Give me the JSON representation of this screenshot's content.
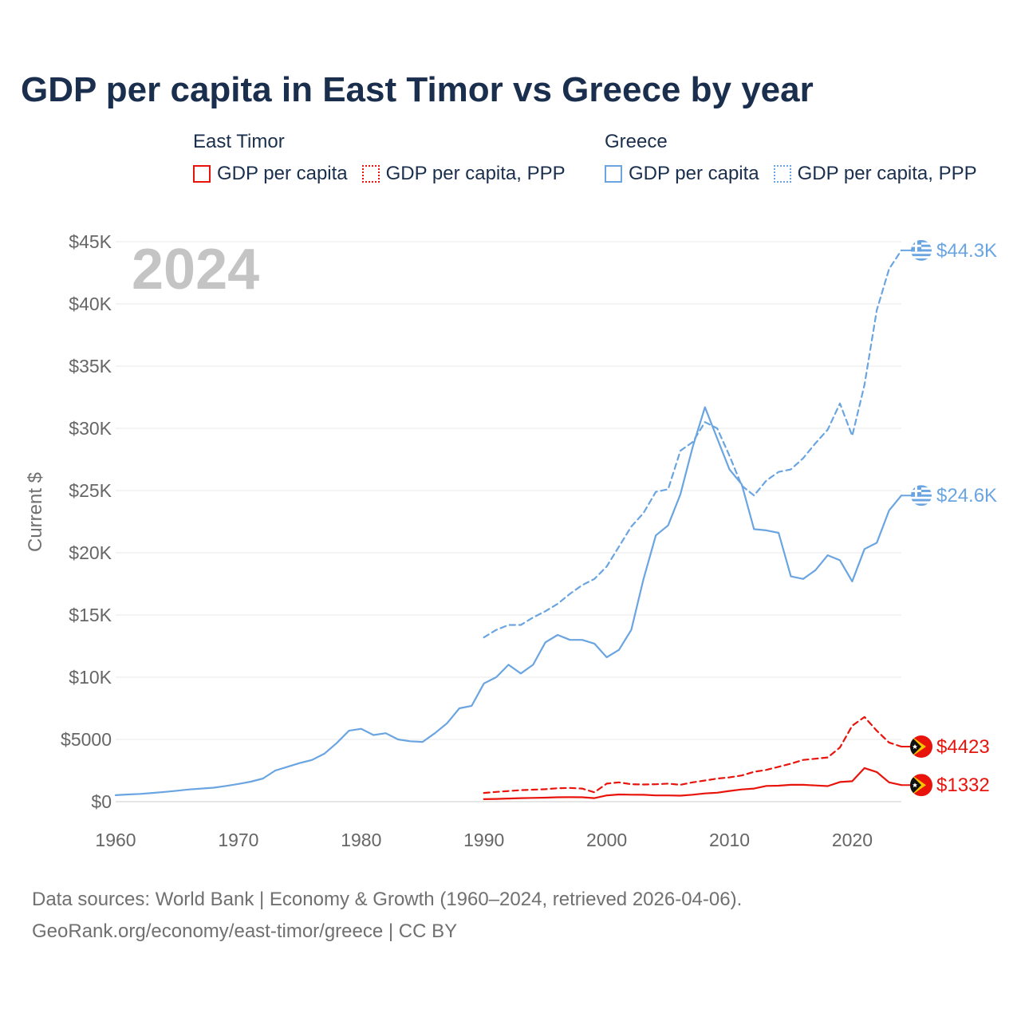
{
  "title": "GDP per capita in East Timor vs Greece by year",
  "legend": {
    "groups": [
      {
        "name": "East Timor",
        "items": [
          {
            "label": "GDP per capita",
            "color": "#e8140c",
            "style": "solid"
          },
          {
            "label": "GDP per capita, PPP",
            "color": "#e8140c",
            "style": "dotted"
          }
        ]
      },
      {
        "name": "Greece",
        "items": [
          {
            "label": "GDP per capita",
            "color": "#6aa5e1",
            "style": "solid"
          },
          {
            "label": "GDP per capita, PPP",
            "color": "#6aa5e1",
            "style": "dotted"
          }
        ]
      }
    ]
  },
  "year_watermark": "2024",
  "footer": {
    "line1": "Data sources: World Bank | Economy & Growth (1960–2024, retrieved 2026-04-06).",
    "line2": "GeoRank.org/economy/east-timor/greece | CC BY"
  },
  "chart_data": {
    "type": "line",
    "title": "GDP per capita in East Timor vs Greece by year",
    "xlabel": "",
    "ylabel": "Current $",
    "xlim": [
      1960,
      2024
    ],
    "ylim": [
      0,
      45000
    ],
    "x_ticks": [
      1960,
      1970,
      1980,
      1990,
      2000,
      2010,
      2020
    ],
    "x_tick_labels": [
      "1960",
      "1970",
      "1980",
      "1990",
      "2000",
      "2010",
      "2020"
    ],
    "y_ticks": [
      0,
      5000,
      10000,
      15000,
      20000,
      25000,
      30000,
      35000,
      40000,
      45000
    ],
    "y_tick_labels": [
      "$0",
      "$5000",
      "$10K",
      "$15K",
      "$20K",
      "$25K",
      "$30K",
      "$35K",
      "$40K",
      "$45K"
    ],
    "grid": true,
    "series": [
      {
        "name": "Greece GDP per capita",
        "color": "#6aa5e1",
        "dash": "solid",
        "flag": "greece-flag-icon",
        "end_label": "$24.6K",
        "x": [
          1960,
          1961,
          1962,
          1963,
          1964,
          1965,
          1966,
          1967,
          1968,
          1969,
          1970,
          1971,
          1972,
          1973,
          1974,
          1975,
          1976,
          1977,
          1978,
          1979,
          1980,
          1981,
          1982,
          1983,
          1984,
          1985,
          1986,
          1987,
          1988,
          1989,
          1990,
          1991,
          1992,
          1993,
          1994,
          1995,
          1996,
          1997,
          1998,
          1999,
          2000,
          2001,
          2002,
          2003,
          2004,
          2005,
          2006,
          2007,
          2008,
          2009,
          2010,
          2011,
          2012,
          2013,
          2014,
          2015,
          2016,
          2017,
          2018,
          2019,
          2020,
          2021,
          2022,
          2023,
          2024
        ],
        "values": [
          520,
          580,
          620,
          700,
          780,
          880,
          980,
          1050,
          1120,
          1260,
          1420,
          1600,
          1860,
          2500,
          2800,
          3100,
          3350,
          3850,
          4700,
          5700,
          5850,
          5350,
          5500,
          5000,
          4850,
          4800,
          5500,
          6300,
          7500,
          7700,
          9500,
          10000,
          11000,
          10300,
          11000,
          12800,
          13400,
          13000,
          13000,
          12700,
          11600,
          12200,
          13800,
          17900,
          21400,
          22200,
          24700,
          28500,
          31700,
          29200,
          26700,
          25500,
          21900,
          21800,
          21600,
          18100,
          17900,
          18600,
          19800,
          19400,
          17700,
          20300,
          20800,
          23400,
          24600
        ]
      },
      {
        "name": "Greece GDP per capita, PPP",
        "color": "#6aa5e1",
        "dash": "dashed",
        "flag": "greece-flag-icon",
        "end_label": "$44.3K",
        "x": [
          1990,
          1991,
          1992,
          1993,
          1994,
          1995,
          1996,
          1997,
          1998,
          1999,
          2000,
          2001,
          2002,
          2003,
          2004,
          2005,
          2006,
          2007,
          2008,
          2009,
          2010,
          2011,
          2012,
          2013,
          2014,
          2015,
          2016,
          2017,
          2018,
          2019,
          2020,
          2021,
          2022,
          2023,
          2024
        ],
        "values": [
          13200,
          13800,
          14200,
          14200,
          14800,
          15300,
          15900,
          16700,
          17400,
          17900,
          18900,
          20500,
          22100,
          23200,
          24900,
          25100,
          28200,
          28900,
          30500,
          30000,
          27800,
          25400,
          24600,
          25800,
          26500,
          26700,
          27600,
          28800,
          29900,
          32000,
          29400,
          33500,
          39500,
          42800,
          44300
        ]
      },
      {
        "name": "East Timor GDP per capita",
        "color": "#e8140c",
        "dash": "solid",
        "flag": "east-timor-flag-icon",
        "end_label": "$1332",
        "x": [
          1990,
          1991,
          1992,
          1993,
          1994,
          1995,
          1996,
          1997,
          1998,
          1999,
          2000,
          2001,
          2002,
          2003,
          2004,
          2005,
          2006,
          2007,
          2008,
          2009,
          2010,
          2011,
          2012,
          2013,
          2014,
          2015,
          2016,
          2017,
          2018,
          2019,
          2020,
          2021,
          2022,
          2023,
          2024
        ],
        "values": [
          200,
          220,
          250,
          280,
          300,
          320,
          350,
          360,
          350,
          280,
          500,
          580,
          560,
          550,
          500,
          500,
          480,
          560,
          660,
          720,
          860,
          980,
          1050,
          1260,
          1280,
          1350,
          1350,
          1300,
          1250,
          1580,
          1640,
          2700,
          2380,
          1550,
          1332
        ]
      },
      {
        "name": "East Timor GDP per capita, PPP",
        "color": "#e8140c",
        "dash": "dashed",
        "flag": "east-timor-flag-icon",
        "end_label": "$4423",
        "x": [
          1990,
          1991,
          1992,
          1993,
          1994,
          1995,
          1996,
          1997,
          1998,
          1999,
          2000,
          2001,
          2002,
          2003,
          2004,
          2005,
          2006,
          2007,
          2008,
          2009,
          2010,
          2011,
          2012,
          2013,
          2014,
          2015,
          2016,
          2017,
          2018,
          2019,
          2020,
          2021,
          2022,
          2023,
          2024
        ],
        "values": [
          700,
          780,
          850,
          920,
          960,
          1000,
          1080,
          1100,
          1050,
          750,
          1450,
          1550,
          1400,
          1380,
          1400,
          1450,
          1350,
          1550,
          1700,
          1850,
          1950,
          2100,
          2400,
          2550,
          2800,
          3050,
          3350,
          3450,
          3550,
          4350,
          6100,
          6800,
          5700,
          4750,
          4423
        ]
      }
    ]
  }
}
